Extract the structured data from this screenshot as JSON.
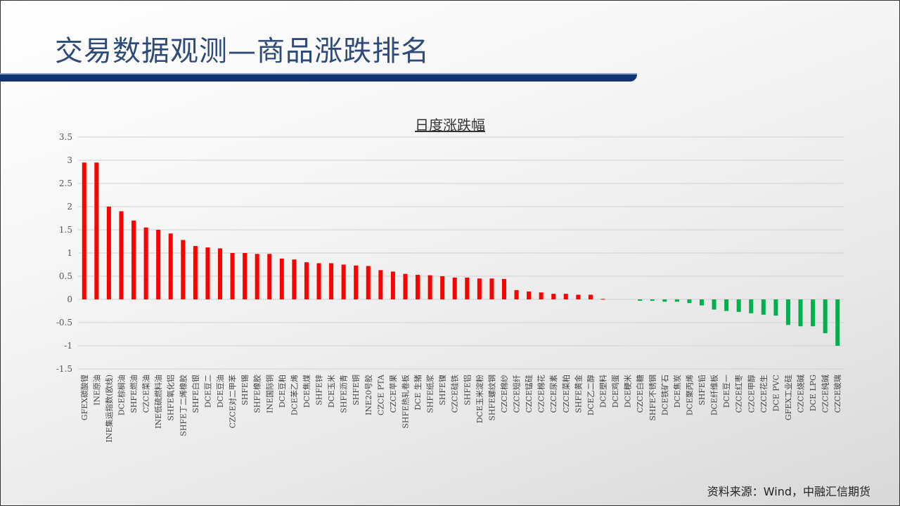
{
  "header": {
    "title": "交易数据观测—商品涨跌排名"
  },
  "footer": {
    "source": "资料来源：Wind，中融汇信期货"
  },
  "colors": {
    "title": "#2e4a78",
    "header_bar": "#0e3570",
    "positive": "#ff0000",
    "negative": "#00b050"
  },
  "chart_data": {
    "type": "bar",
    "title": "日度涨跌幅",
    "xlabel": "",
    "ylabel": "",
    "ylim": [
      -1.5,
      3.5
    ],
    "yticks": [
      3.5,
      3,
      2.5,
      2,
      1.5,
      1,
      0.5,
      0,
      -0.5,
      -1,
      -1.5
    ],
    "ytick_labels": [
      "3.5",
      "3",
      "2.5",
      "2",
      "1.5",
      "1",
      "0.5",
      "0",
      "-0.5",
      "-1",
      "-1.5"
    ],
    "grid": true,
    "categories": [
      "GFEX碳酸锂",
      "INE原油",
      "INE集运指数(欧线)",
      "DCE棕榈油",
      "SHFE燃油",
      "CZCE菜油",
      "INE低硫燃料油",
      "SHFE氧化铝",
      "SHFE丁二烯橡胶",
      "SHFE白银",
      "DCE豆二",
      "DCE豆油",
      "CZCE对二甲苯",
      "SHFE锡",
      "SHFE橡胶",
      "INE国际铜",
      "DCE豆粕",
      "DCE苯乙烯",
      "DCE焦煤",
      "SHFE锌",
      "DCE玉米",
      "SHFE沥青",
      "SHFE铜",
      "INE20号胶",
      "CZCE PTA",
      "CZCE苹果",
      "SHFE热轧卷板",
      "DCE 生猪",
      "SHFE纸浆",
      "SHFE镍",
      "CZCE硅铁",
      "SHFE铝",
      "DCE玉米淀粉",
      "SHFE螺纹钢",
      "CZCE棉纱",
      "CZCE短纤",
      "CZCE锰硅",
      "CZCE棉花",
      "CZCE尿素",
      "CZCE菜粕",
      "SHFE黄金",
      "DCE乙二醇",
      "DCE塑料",
      "DCE鸡蛋",
      "DCE粳米",
      "CZCE白糖",
      "SHFE不锈钢",
      "DCE铁矿石",
      "DCE焦炭",
      "DCE聚丙烯",
      "SHFE铅",
      "DCE纤维板",
      "DCE豆一",
      "CZCE红枣",
      "CZCE甲醇",
      "CZCE花生",
      "DCE PVC",
      "GFEX工业硅",
      "CZCE烧碱",
      "DCE LPG",
      "CZCE纯碱",
      "CZCE玻璃"
    ],
    "values": [
      2.95,
      2.95,
      2.0,
      1.9,
      1.7,
      1.55,
      1.5,
      1.42,
      1.28,
      1.15,
      1.12,
      1.1,
      1.0,
      1.0,
      0.98,
      0.98,
      0.88,
      0.86,
      0.8,
      0.78,
      0.78,
      0.75,
      0.73,
      0.72,
      0.63,
      0.6,
      0.55,
      0.53,
      0.52,
      0.5,
      0.47,
      0.47,
      0.45,
      0.45,
      0.44,
      0.2,
      0.17,
      0.15,
      0.12,
      0.12,
      0.1,
      0.1,
      0.01,
      0,
      0,
      -0.03,
      -0.03,
      -0.05,
      -0.05,
      -0.08,
      -0.13,
      -0.22,
      -0.25,
      -0.27,
      -0.3,
      -0.33,
      -0.35,
      -0.55,
      -0.58,
      -0.58,
      -0.73,
      -1.0
    ]
  }
}
